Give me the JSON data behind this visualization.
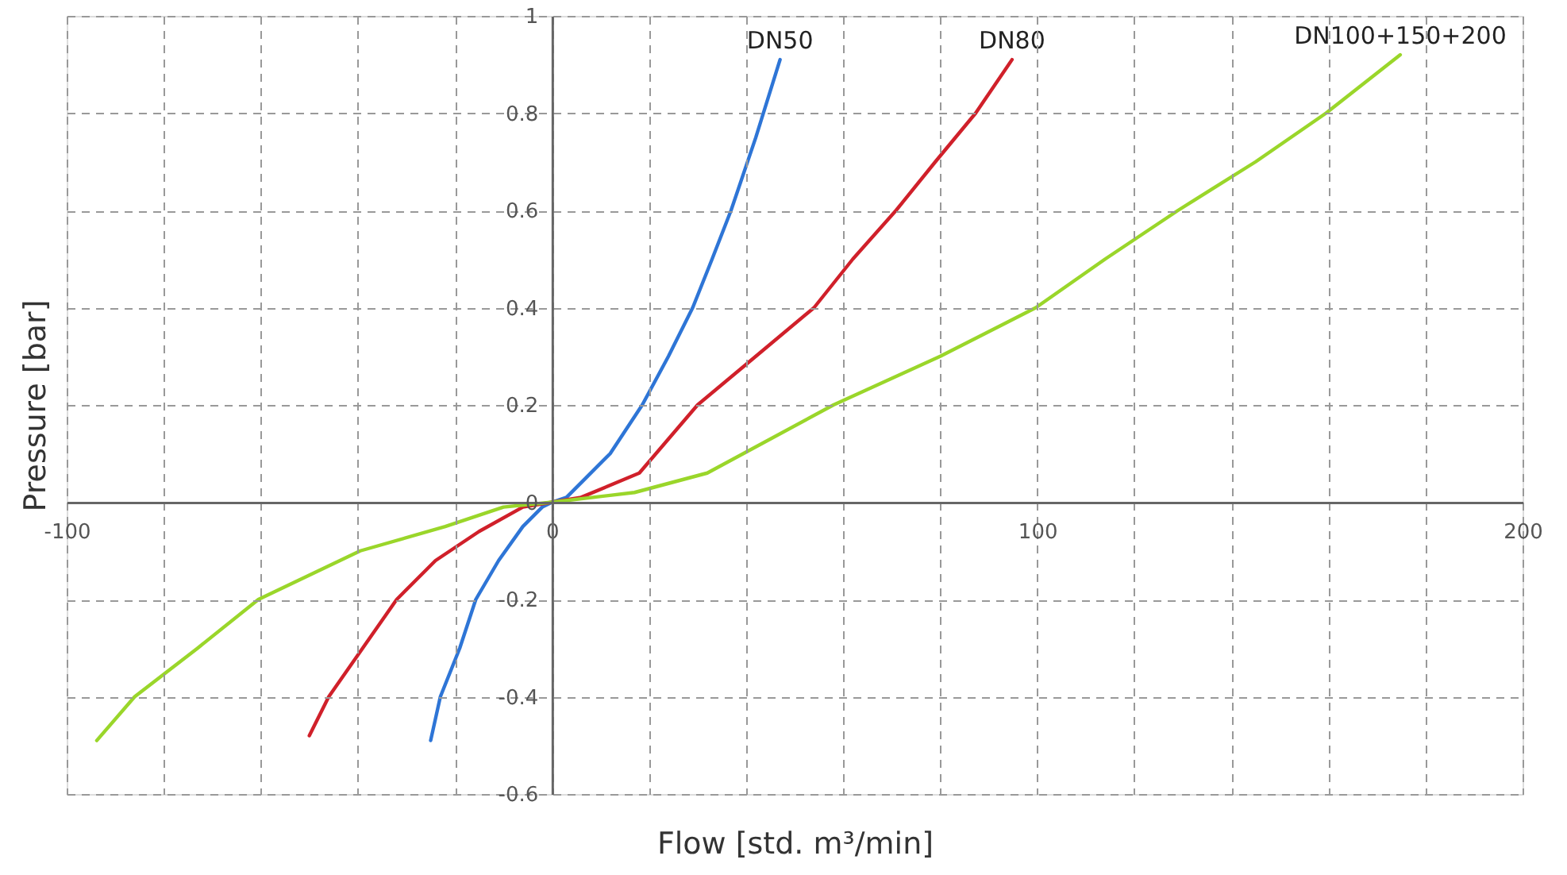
{
  "chart_data": {
    "type": "line",
    "xlabel": "Flow [std. m³/min]",
    "ylabel": "Pressure [bar]",
    "xlim": [
      -100,
      200
    ],
    "ylim": [
      -0.6,
      1
    ],
    "xticks": [
      -100,
      {
        "value": -80,
        "label": null
      },
      {
        "value": -60,
        "label": null
      },
      {
        "value": -40,
        "label": null
      },
      {
        "value": -20,
        "label": null
      },
      0,
      {
        "value": 20,
        "label": null
      },
      {
        "value": 40,
        "label": null
      },
      {
        "value": 60,
        "label": null
      },
      {
        "value": 80,
        "label": null
      },
      100,
      {
        "value": 120,
        "label": null
      },
      {
        "value": 140,
        "label": null
      },
      {
        "value": 160,
        "label": null
      },
      {
        "value": 180,
        "label": null
      },
      200
    ],
    "yticks": [
      -0.6,
      -0.4,
      -0.2,
      0,
      0.2,
      0.4,
      0.6,
      0.8,
      1
    ],
    "grid": true,
    "marker": "none",
    "line_style": "solid",
    "series": [
      {
        "name": "DN50",
        "color": "#2e75d6",
        "x": [
          -25,
          -23,
          -19,
          -15.7,
          -11,
          -6,
          -2,
          0,
          3,
          7,
          12,
          18.6,
          24,
          29,
          33,
          36.9,
          42,
          47
        ],
        "values": [
          -0.49,
          -0.4,
          -0.3,
          -0.2,
          -0.12,
          -0.05,
          -0.01,
          0,
          0.01,
          0.05,
          0.1,
          0.2,
          0.3,
          0.4,
          0.5,
          0.6,
          0.75,
          0.91
        ]
      },
      {
        "name": "DN80",
        "color": "#d0202a",
        "x": [
          -50,
          -46,
          -39,
          -32,
          -24,
          -15,
          -6,
          0,
          6,
          18,
          30,
          42,
          54,
          62,
          70.9,
          79,
          87.3,
          94.8
        ],
        "values": [
          -0.48,
          -0.4,
          -0.3,
          -0.2,
          -0.12,
          -0.06,
          -0.01,
          0,
          0.01,
          0.06,
          0.2,
          0.3,
          0.4,
          0.5,
          0.6,
          0.7,
          0.8,
          0.91
        ]
      },
      {
        "name": "DN100+150+200",
        "color": "#9ad62a",
        "x": [
          -93.8,
          -86,
          -73,
          -60.5,
          -39.5,
          -22,
          -10,
          0,
          17,
          32,
          58,
          80,
          99.7,
          114,
          129,
          145,
          159.5,
          174.8
        ],
        "values": [
          -0.49,
          -0.4,
          -0.3,
          -0.2,
          -0.1,
          -0.05,
          -0.01,
          0,
          0.02,
          0.06,
          0.2,
          0.3,
          0.4,
          0.5,
          0.6,
          0.7,
          0.8,
          0.92
        ]
      }
    ]
  }
}
